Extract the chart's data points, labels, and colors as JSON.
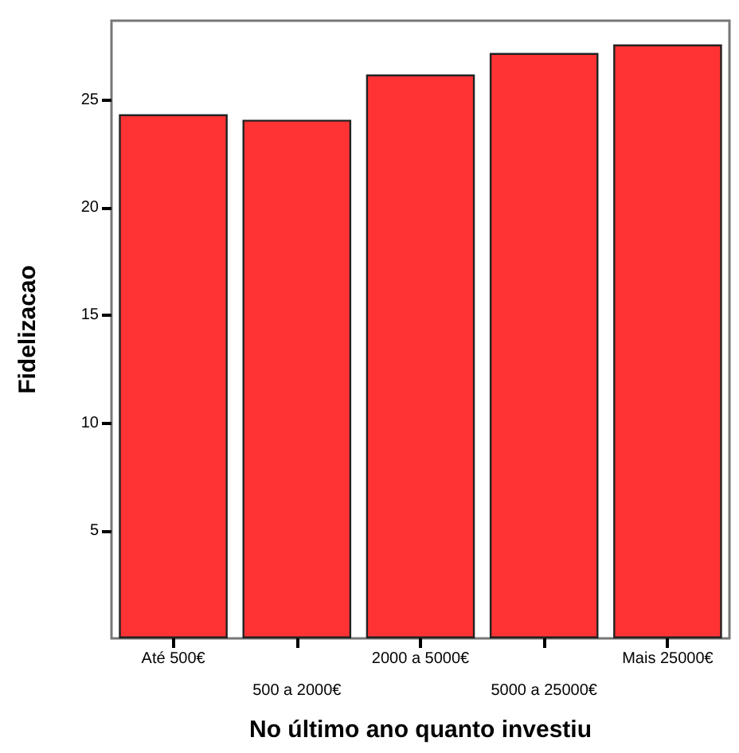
{
  "chart_data": {
    "type": "bar",
    "xlabel": "No último ano quanto investiu",
    "ylabel": "Fidelizacao",
    "categories": [
      "Até 500€",
      "500 a 2000€",
      "2000 a 5000€",
      "5000 a 25000€",
      "Mais 25000€"
    ],
    "values": [
      24.35,
      24.1,
      26.2,
      27.2,
      27.6
    ],
    "color": "#ff3333",
    "ylim": [
      0,
      28.7
    ],
    "yticks": [
      5,
      10,
      15,
      20,
      25
    ],
    "grid": false
  }
}
